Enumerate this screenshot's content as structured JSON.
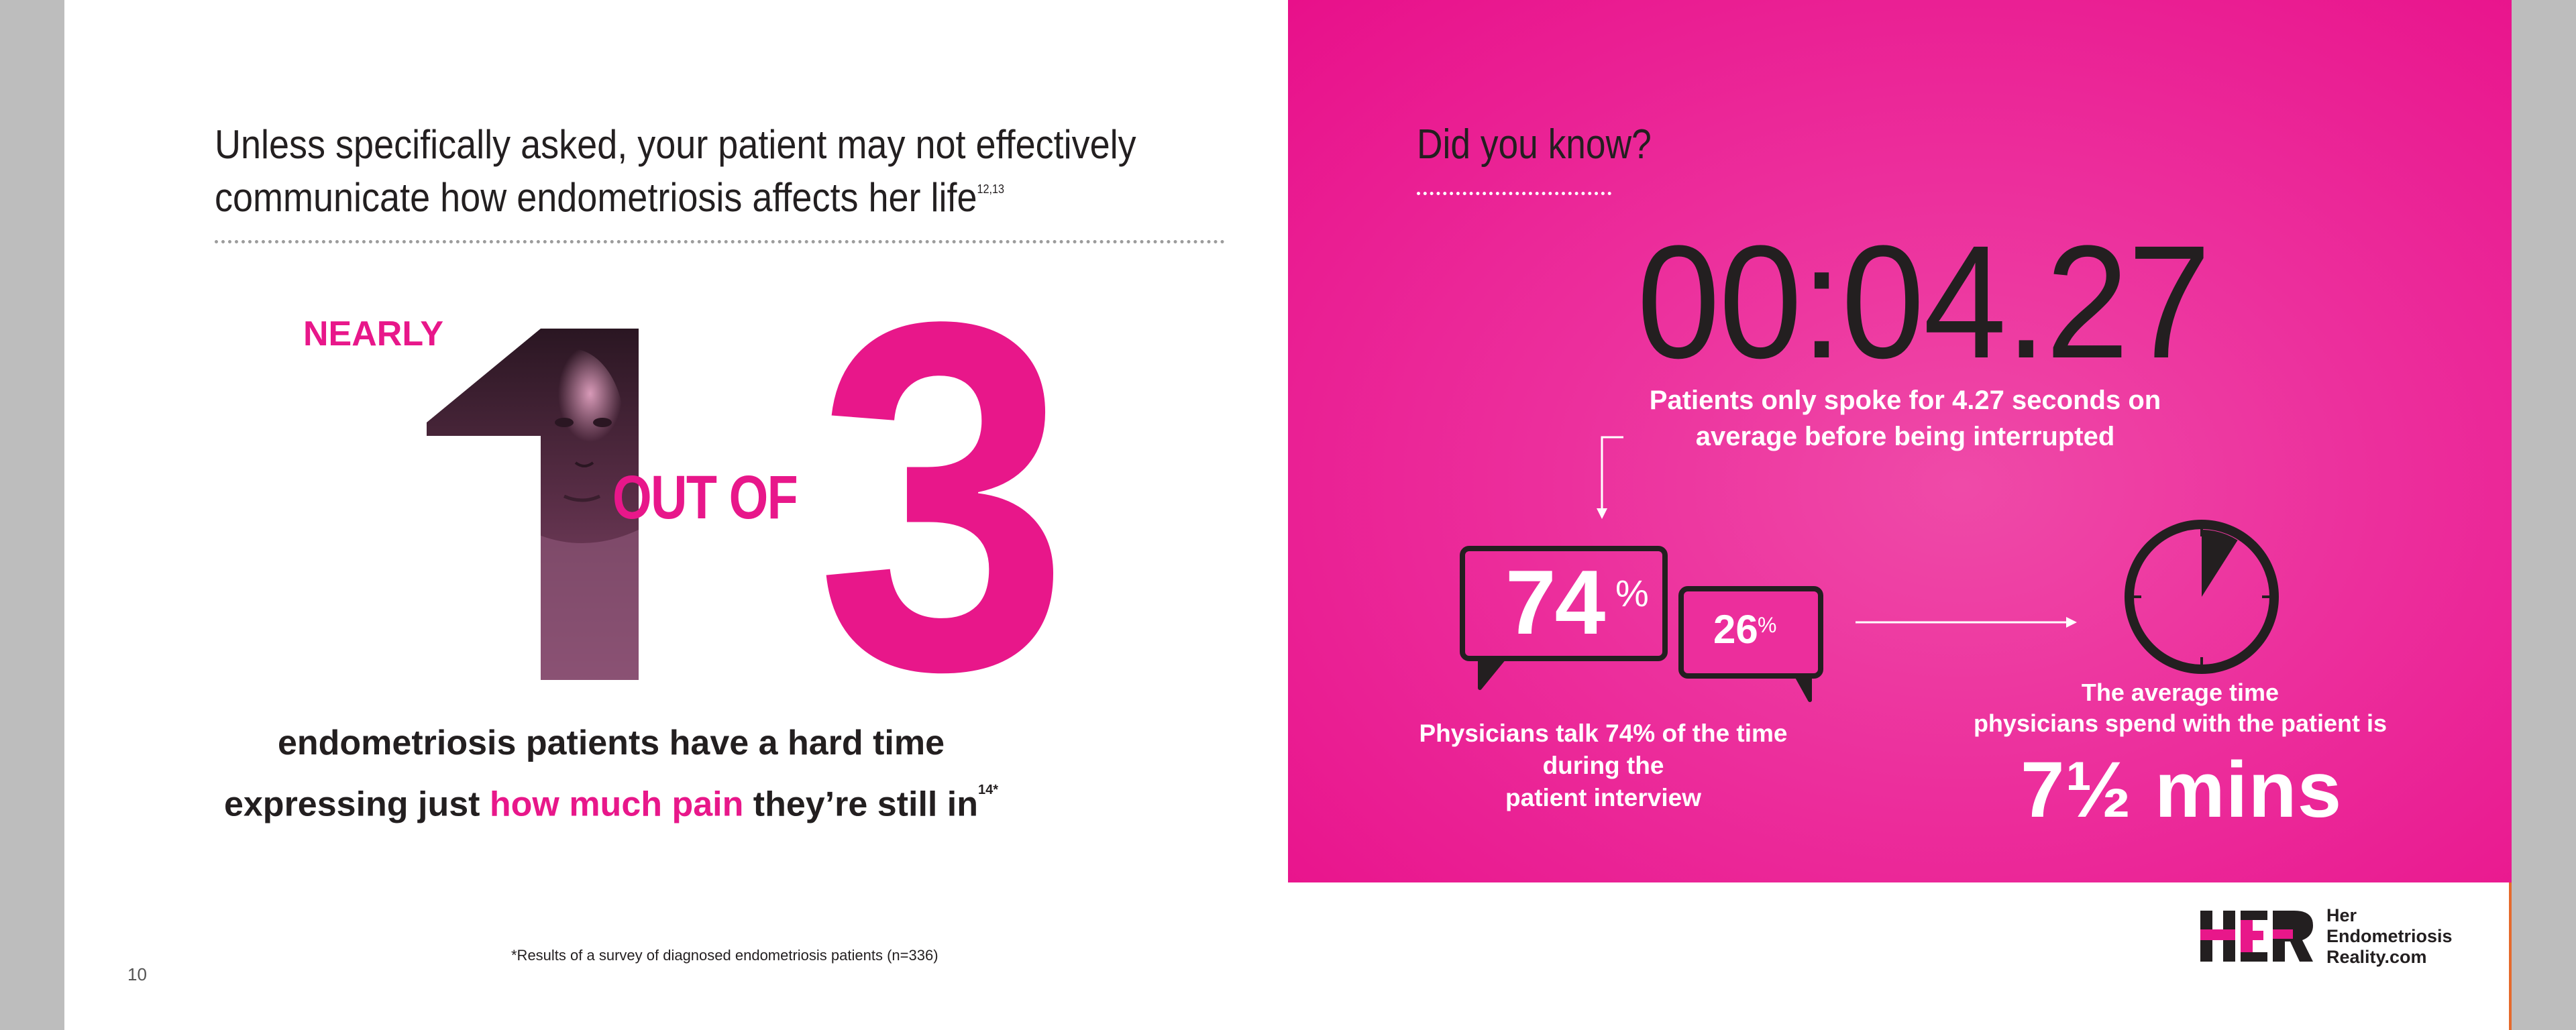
{
  "left_page": {
    "heading_line1": "Unless specifically asked, your patient may not effectively",
    "heading_line2": "communicate how endometriosis affects her life",
    "heading_sup": "12,13",
    "nearly": "NEARLY",
    "out_of": "OUT OF",
    "big_three": "3",
    "caption_line1": "endometriosis patients have a hard time",
    "caption_prefix": "expressing just ",
    "caption_highlight": "how much pain",
    "caption_suffix": " they’re still in",
    "caption_sup": "14*",
    "footnote": "*Results of a survey of diagnosed endometriosis patients (n=336)",
    "page_number": "10"
  },
  "right_page": {
    "title": "Did you know?",
    "timer": "00:04.27",
    "timer_caption_line1": "Patients only spoke for 4.27 seconds on",
    "timer_caption_line2": "average before being interrupted",
    "physician_pct": "74",
    "patient_pct": "26",
    "pct_symbol": "%",
    "bubble_caption_line1": "Physicians talk 74% of the time during the",
    "bubble_caption_line2": "patient interview",
    "time_caption_line1": "The average time",
    "time_caption_line2": "physicians spend with the patient is",
    "average_time": "7½ mins",
    "clock_fill_fraction": 0.09
  },
  "logo": {
    "line1": "Her",
    "line2": "Endometriosis",
    "line3": "Reality.com"
  },
  "colors": {
    "brand_pink": "#e8178a",
    "text_dark": "#231f20",
    "panel_pink": "#ec2e9c"
  }
}
